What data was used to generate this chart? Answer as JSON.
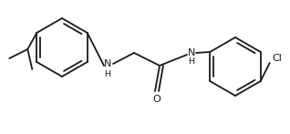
{
  "bg_color": "#ffffff",
  "line_color": "#1a1a1a",
  "text_color": "#1a1a1a",
  "figsize": [
    3.18,
    1.47
  ],
  "dpi": 100,
  "lw": 1.3,
  "font_size": 8.0,
  "xlim": [
    0,
    318
  ],
  "ylim": [
    0,
    147
  ]
}
